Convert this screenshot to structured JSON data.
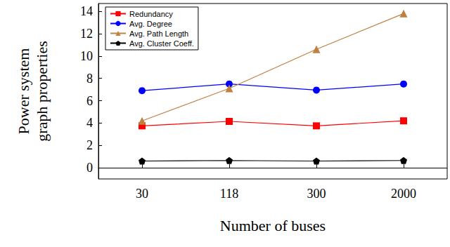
{
  "chart_data": {
    "type": "line",
    "x_label": "Number of buses",
    "y_label": "Power system\ngraph properties",
    "categories": [
      "30",
      "118",
      "300",
      "2000"
    ],
    "series": [
      {
        "name": "Redundancy",
        "color": "#ff0000",
        "marker": "square",
        "values": [
          3.75,
          4.15,
          3.75,
          4.2
        ]
      },
      {
        "name": "Avg. Degree",
        "color": "#0000ff",
        "marker": "circle",
        "values": [
          6.9,
          7.5,
          6.95,
          7.5
        ]
      },
      {
        "name": "Avg. Path Length",
        "color": "#bf8040",
        "marker": "triangle",
        "values": [
          4.2,
          7.1,
          10.6,
          13.8
        ]
      },
      {
        "name": "Avg. Cluster Coeff.",
        "color": "#000000",
        "marker": "pentagon",
        "values": [
          0.6,
          0.65,
          0.6,
          0.65
        ]
      }
    ],
    "ylim": [
      -1,
      14.7
    ],
    "yticks": [
      0,
      2,
      4,
      6,
      8,
      10,
      12,
      14
    ],
    "grid": false,
    "legend": "top-left"
  }
}
